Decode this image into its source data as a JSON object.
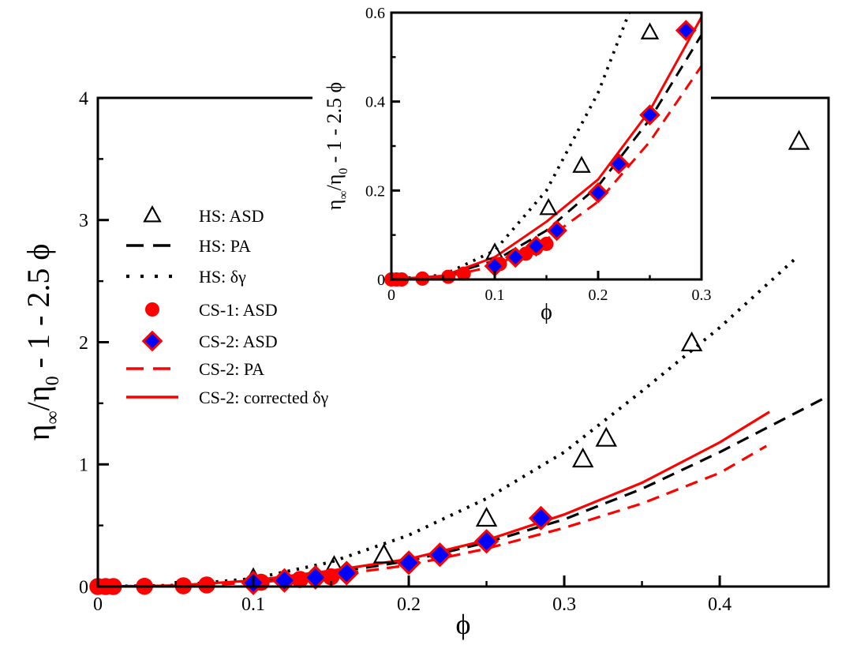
{
  "chart_data": [
    {
      "type": "scatter",
      "panel": "main",
      "xlabel": "ϕ",
      "ylabel_parts": [
        "η",
        "∞",
        "/η",
        "0",
        " - 1 - 2.5 ϕ"
      ],
      "xlim": [
        0,
        0.47
      ],
      "ylim": [
        0,
        4
      ],
      "xticks": [
        "0",
        "0.1",
        "0.2",
        "0.3",
        "0.4"
      ],
      "xtick_values": [
        0,
        0.1,
        0.2,
        0.3,
        0.4
      ],
      "yticks": [
        "0",
        "1",
        "2",
        "3",
        "4"
      ],
      "ytick_values": [
        0,
        1,
        2,
        3,
        4
      ],
      "legend_position": "left-center",
      "grid": false
    },
    {
      "type": "scatter",
      "panel": "inset",
      "xlabel": "ϕ",
      "ylabel_parts": [
        "η",
        "∞",
        "/η",
        "0",
        " - 1 - 2.5 ϕ"
      ],
      "xlim": [
        0,
        0.3
      ],
      "ylim": [
        0,
        0.6
      ],
      "xticks": [
        "0",
        "0.1",
        "0.2",
        "0.3"
      ],
      "xtick_values": [
        0,
        0.1,
        0.2,
        0.3
      ],
      "yticks": [
        "0",
        "0.2",
        "0.4",
        "0.6"
      ],
      "ytick_values": [
        0,
        0.2,
        0.4,
        0.6
      ],
      "grid": false
    }
  ],
  "series": [
    {
      "name": "HS: ASD",
      "kind": "triangle",
      "color": "#000000",
      "x": [
        0.1,
        0.152,
        0.184,
        0.25,
        0.312,
        0.327,
        0.382,
        0.451
      ],
      "y": [
        0.06,
        0.16,
        0.255,
        0.555,
        1.04,
        1.21,
        1.99,
        3.64
      ]
    },
    {
      "name": "HS: PA",
      "kind": "dashed",
      "color": "#000000",
      "x": [
        0,
        0.05,
        0.1,
        0.15,
        0.2,
        0.25,
        0.3,
        0.35,
        0.4,
        0.47
      ],
      "y": [
        0,
        0.008,
        0.042,
        0.11,
        0.21,
        0.36,
        0.55,
        0.8,
        1.1,
        1.56
      ]
    },
    {
      "name": "HS: δγ",
      "kind": "dotted",
      "color": "#000000",
      "x": [
        0,
        0.05,
        0.1,
        0.15,
        0.2,
        0.23,
        0.25,
        0.3,
        0.35,
        0.4,
        0.45
      ],
      "y": [
        0,
        0.01,
        0.065,
        0.2,
        0.42,
        0.6,
        0.72,
        1.1,
        1.6,
        2.12,
        2.7
      ]
    },
    {
      "name": "CS-1: ASD",
      "kind": "circle",
      "color": "#ff0000",
      "x": [
        0,
        0.005,
        0.01,
        0.03,
        0.055,
        0.07,
        0.1,
        0.105,
        0.12,
        0.13,
        0.14,
        0.15
      ],
      "y": [
        0,
        0,
        0,
        0.002,
        0.006,
        0.013,
        0.03,
        0.035,
        0.05,
        0.058,
        0.07,
        0.08
      ]
    },
    {
      "name": "CS-2: ASD",
      "kind": "diamond",
      "color": "#ff0000",
      "fill": "#0000ff",
      "x": [
        0.1,
        0.12,
        0.14,
        0.16,
        0.2,
        0.22,
        0.25,
        0.285
      ],
      "y": [
        0.03,
        0.05,
        0.075,
        0.11,
        0.195,
        0.26,
        0.37,
        0.56
      ]
    },
    {
      "name": "CS-2: PA",
      "kind": "dashed",
      "color": "#ff0000",
      "x": [
        0,
        0.05,
        0.1,
        0.15,
        0.2,
        0.25,
        0.3,
        0.35,
        0.4,
        0.43
      ],
      "y": [
        0,
        0.005,
        0.03,
        0.09,
        0.175,
        0.31,
        0.48,
        0.68,
        0.93,
        1.15
      ]
    },
    {
      "name": "CS-2: corrected δγ",
      "kind": "solid",
      "color": "#ff0000",
      "x": [
        0,
        0.05,
        0.1,
        0.15,
        0.2,
        0.25,
        0.3,
        0.35,
        0.4,
        0.432
      ],
      "y": [
        0,
        0.008,
        0.05,
        0.13,
        0.225,
        0.38,
        0.59,
        0.85,
        1.18,
        1.43
      ]
    }
  ]
}
